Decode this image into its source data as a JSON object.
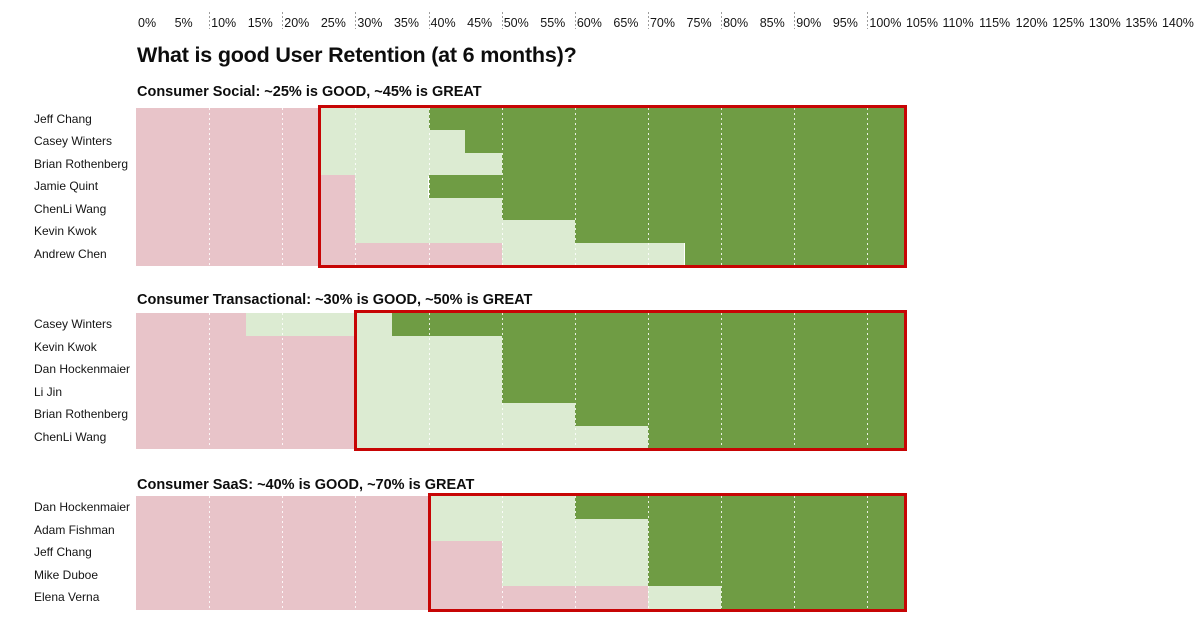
{
  "title": "What is good User Retention (at 6 months)?",
  "axis": {
    "unit": "%",
    "min": 0,
    "max": 140,
    "label_step": 5,
    "tick_values": [
      0,
      5,
      10,
      15,
      20,
      25,
      30,
      35,
      40,
      45,
      50,
      55,
      60,
      65,
      70,
      75,
      80,
      85,
      90,
      95,
      100,
      105,
      110,
      115,
      120,
      125,
      130,
      135,
      140
    ],
    "tick_labels": [
      "0%",
      "5%",
      "10%",
      "15%",
      "20%",
      "25%",
      "30%",
      "35%",
      "40%",
      "45%",
      "50%",
      "55%",
      "60%",
      "65%",
      "70%",
      "75%",
      "80%",
      "85%",
      "90%",
      "95%",
      "100%",
      "105%",
      "110%",
      "115%",
      "120%",
      "125%",
      "130%",
      "135%",
      "140%"
    ],
    "gridline_values": [
      10,
      20,
      30,
      40,
      50,
      60,
      70,
      80,
      90,
      100
    ]
  },
  "colors": {
    "bad_range": "#e8c4c9",
    "good_range": "#dcebd2",
    "great_range": "#6f9c44",
    "highlight_border": "#c70505"
  },
  "chart_data": [
    {
      "type": "bar",
      "subtype": "stacked-threshold-ranges",
      "category": "Consumer Social",
      "header": "Consumer Social: ~25% is GOOD, ~45% is GREAT",
      "good_pct": 25,
      "great_pct": 45,
      "bar_start_pct": 0,
      "bar_end_pct": 105,
      "highlight_box_from_pct": 25,
      "highlight_box_to_pct": 105,
      "rows": [
        {
          "name": "Jeff Chang",
          "good_from_pct": 25,
          "great_from_pct": 40
        },
        {
          "name": "Casey Winters",
          "good_from_pct": 25,
          "great_from_pct": 45
        },
        {
          "name": "Brian Rothenberg",
          "good_from_pct": 25,
          "great_from_pct": 50
        },
        {
          "name": "Jamie Quint",
          "good_from_pct": 30,
          "great_from_pct": 40
        },
        {
          "name": "ChenLi Wang",
          "good_from_pct": 30,
          "great_from_pct": 50
        },
        {
          "name": "Kevin Kwok",
          "good_from_pct": 30,
          "great_from_pct": 60
        },
        {
          "name": "Andrew Chen",
          "good_from_pct": 50,
          "great_from_pct": 75
        }
      ]
    },
    {
      "type": "bar",
      "subtype": "stacked-threshold-ranges",
      "category": "Consumer Transactional",
      "header": "Consumer Transactional: ~30% is GOOD, ~50% is GREAT",
      "good_pct": 30,
      "great_pct": 50,
      "bar_start_pct": 0,
      "bar_end_pct": 105,
      "highlight_box_from_pct": 30,
      "highlight_box_to_pct": 105,
      "rows": [
        {
          "name": "Casey Winters",
          "good_from_pct": 15,
          "great_from_pct": 35
        },
        {
          "name": "Kevin Kwok",
          "good_from_pct": 30,
          "great_from_pct": 50
        },
        {
          "name": "Dan Hockenmaier",
          "good_from_pct": 30,
          "great_from_pct": 50
        },
        {
          "name": "Li Jin",
          "good_from_pct": 30,
          "great_from_pct": 50
        },
        {
          "name": "Brian Rothenberg",
          "good_from_pct": 30,
          "great_from_pct": 60
        },
        {
          "name": "ChenLi Wang",
          "good_from_pct": 30,
          "great_from_pct": 70
        }
      ]
    },
    {
      "type": "bar",
      "subtype": "stacked-threshold-ranges",
      "category": "Consumer SaaS",
      "header": "Consumer SaaS: ~40% is GOOD, ~70% is GREAT",
      "good_pct": 40,
      "great_pct": 70,
      "bar_start_pct": 0,
      "bar_end_pct": 105,
      "highlight_box_from_pct": 40,
      "highlight_box_to_pct": 105,
      "rows": [
        {
          "name": "Dan Hockenmaier",
          "good_from_pct": 40,
          "great_from_pct": 60
        },
        {
          "name": "Adam Fishman",
          "good_from_pct": 40,
          "great_from_pct": 70
        },
        {
          "name": "Jeff Chang",
          "good_from_pct": 50,
          "great_from_pct": 70
        },
        {
          "name": "Mike Duboe",
          "good_from_pct": 50,
          "great_from_pct": 70
        },
        {
          "name": "Elena Verna",
          "good_from_pct": 70,
          "great_from_pct": 80
        }
      ]
    }
  ]
}
